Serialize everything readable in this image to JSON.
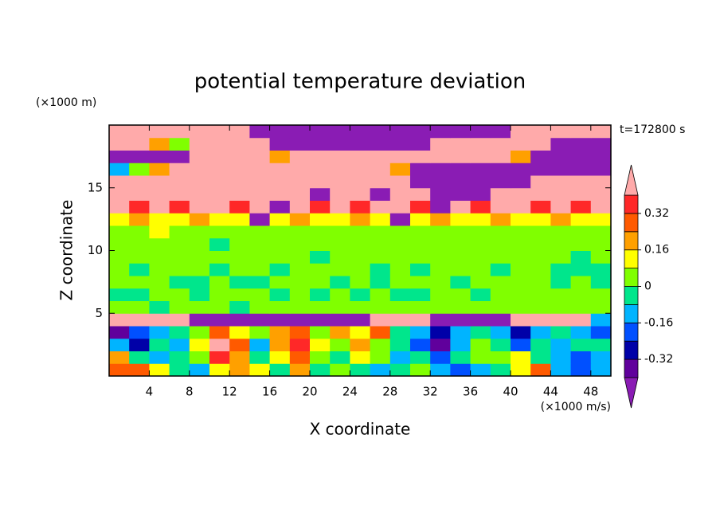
{
  "chart_data": {
    "type": "contour",
    "title": "potential temperature deviation",
    "xlabel": "X coordinate",
    "ylabel": "Z coordinate",
    "xunit": "(×1000 m/s)",
    "yunit": "(×1000 m)",
    "annotation": "t=172800 s",
    "xlim": [
      0,
      50
    ],
    "ylim": [
      0,
      20
    ],
    "xticks": [
      4,
      8,
      12,
      16,
      20,
      24,
      28,
      32,
      36,
      40,
      44,
      48
    ],
    "yticks": [
      5,
      10,
      15
    ],
    "x": [
      1,
      3,
      5,
      7,
      9,
      11,
      13,
      15,
      17,
      19,
      21,
      23,
      25,
      27,
      29,
      31,
      33,
      35,
      37,
      39,
      41,
      43,
      45,
      47,
      49
    ],
    "y": [
      0.5,
      1.5,
      2.5,
      3.5,
      4.5,
      5.5,
      6.5,
      7.5,
      8.5,
      9.5,
      10.5,
      11.5,
      12.5,
      13.5,
      14.5,
      15.5,
      16.5,
      17.5,
      18.5,
      19.5
    ],
    "levels": [
      -0.4,
      -0.32,
      -0.24,
      -0.16,
      -0.08,
      0,
      0.08,
      0.16,
      0.24,
      0.32,
      0.4
    ],
    "colors": [
      "#60009c",
      "#0000a8",
      "#0050ff",
      "#00b4ff",
      "#00e68c",
      "#80ff00",
      "#ffff00",
      "#ffa000",
      "#ff5a00",
      "#ff2828"
    ],
    "under_color": "#8a1cb4",
    "over_color": "#ffaaaa",
    "cbar_ticks": [
      -0.32,
      -0.16,
      0,
      0.16,
      0.32
    ],
    "z": [
      [
        0.28,
        0.28,
        0.12,
        -0.04,
        -0.12,
        0.12,
        0.2,
        0.12,
        -0.04,
        0.2,
        -0.04,
        0.04,
        -0.04,
        -0.12,
        -0.04,
        0.04,
        -0.12,
        -0.2,
        -0.12,
        -0.04,
        0.12,
        0.28,
        -0.12,
        -0.2,
        -0.12
      ],
      [
        0.2,
        -0.04,
        -0.12,
        -0.04,
        0.04,
        0.36,
        0.2,
        -0.04,
        0.12,
        0.28,
        0.04,
        -0.04,
        0.12,
        0.04,
        -0.12,
        -0.04,
        -0.2,
        -0.04,
        0.04,
        0.04,
        0.12,
        -0.04,
        -0.12,
        -0.2,
        -0.12
      ],
      [
        -0.12,
        -0.28,
        -0.04,
        -0.12,
        0.12,
        0.45,
        0.28,
        -0.12,
        0.2,
        0.36,
        0.12,
        0.04,
        0.2,
        0.04,
        -0.04,
        -0.2,
        -0.36,
        -0.12,
        0.04,
        -0.04,
        -0.2,
        -0.04,
        -0.12,
        -0.04,
        -0.04
      ],
      [
        -0.36,
        -0.2,
        -0.12,
        -0.04,
        0.04,
        0.28,
        0.12,
        0.04,
        0.2,
        0.28,
        0.04,
        0.2,
        0.12,
        0.28,
        -0.04,
        -0.12,
        -0.28,
        -0.12,
        -0.04,
        -0.12,
        -0.28,
        -0.12,
        -0.04,
        -0.12,
        -0.2
      ],
      [
        0.45,
        0.45,
        0.45,
        0.45,
        -0.45,
        -0.45,
        -0.45,
        -0.45,
        -0.45,
        -0.45,
        -0.45,
        -0.45,
        -0.45,
        0.45,
        0.45,
        0.45,
        -0.45,
        -0.45,
        -0.45,
        -0.45,
        0.45,
        0.45,
        0.45,
        0.45,
        -0.12
      ],
      [
        0.04,
        0.04,
        -0.04,
        0.04,
        0.04,
        0.04,
        -0.04,
        0.04,
        0.04,
        0.04,
        0.04,
        0.04,
        0.04,
        0.04,
        0.04,
        0.04,
        0.04,
        0.04,
        0.04,
        0.04,
        0.04,
        0.04,
        0.04,
        0.04,
        0.04
      ],
      [
        -0.04,
        -0.04,
        0.04,
        0.04,
        -0.04,
        0.04,
        0.04,
        0.04,
        -0.04,
        0.04,
        -0.04,
        0.04,
        -0.04,
        0.04,
        -0.04,
        -0.04,
        0.04,
        0.04,
        -0.04,
        0.04,
        0.04,
        0.04,
        0.04,
        0.04,
        0.04
      ],
      [
        0.04,
        0.04,
        0.04,
        -0.04,
        -0.04,
        0.04,
        -0.04,
        -0.04,
        0.04,
        0.04,
        0.04,
        -0.04,
        0.04,
        -0.04,
        0.04,
        0.04,
        0.04,
        -0.04,
        0.04,
        0.04,
        0.04,
        0.04,
        -0.04,
        0.04,
        -0.04
      ],
      [
        0.04,
        -0.04,
        0.04,
        0.04,
        0.04,
        -0.04,
        0.04,
        0.04,
        -0.04,
        0.04,
        0.04,
        0.04,
        0.04,
        -0.04,
        0.04,
        -0.04,
        0.04,
        0.04,
        0.04,
        -0.04,
        0.04,
        0.04,
        -0.04,
        -0.04,
        -0.04
      ],
      [
        0.04,
        0.04,
        0.04,
        0.04,
        0.04,
        0.04,
        0.04,
        0.04,
        0.04,
        0.04,
        -0.04,
        0.04,
        0.04,
        0.04,
        0.04,
        0.04,
        0.04,
        0.04,
        0.04,
        0.04,
        0.04,
        0.04,
        0.04,
        -0.04,
        0.04
      ],
      [
        0.04,
        0.04,
        0.04,
        0.04,
        0.04,
        -0.04,
        0.04,
        0.04,
        0.04,
        0.04,
        0.04,
        0.04,
        0.04,
        0.04,
        0.04,
        0.04,
        0.04,
        0.04,
        0.04,
        0.04,
        0.04,
        0.04,
        0.04,
        0.04,
        0.04
      ],
      [
        0.04,
        0.04,
        0.12,
        0.04,
        0.04,
        0.04,
        0.04,
        0.04,
        0.04,
        0.04,
        0.04,
        0.04,
        0.04,
        0.04,
        0.04,
        0.04,
        0.04,
        0.04,
        0.04,
        0.04,
        0.04,
        0.04,
        0.04,
        0.04,
        0.04
      ],
      [
        0.12,
        0.2,
        0.12,
        0.12,
        0.2,
        0.12,
        0.12,
        -0.45,
        0.12,
        0.2,
        0.12,
        0.12,
        0.2,
        0.12,
        -0.45,
        0.12,
        0.2,
        0.12,
        0.12,
        0.2,
        0.12,
        0.12,
        0.2,
        0.12,
        0.12
      ],
      [
        0.45,
        0.36,
        0.45,
        0.36,
        0.45,
        0.45,
        0.36,
        0.45,
        -0.45,
        0.45,
        0.36,
        0.45,
        0.36,
        0.45,
        0.45,
        0.36,
        -0.45,
        0.45,
        0.36,
        0.45,
        0.45,
        0.36,
        0.45,
        0.36,
        0.45
      ],
      [
        0.45,
        0.45,
        0.45,
        0.45,
        0.45,
        0.45,
        0.45,
        0.45,
        0.45,
        0.45,
        -0.45,
        0.45,
        0.45,
        -0.45,
        0.45,
        0.45,
        -0.45,
        -0.45,
        -0.45,
        0.45,
        0.45,
        0.45,
        0.45,
        0.45,
        0.45
      ],
      [
        0.45,
        0.45,
        0.45,
        0.45,
        0.45,
        0.45,
        0.45,
        0.45,
        0.45,
        0.45,
        0.45,
        0.45,
        0.45,
        0.45,
        0.45,
        -0.45,
        -0.45,
        -0.45,
        -0.45,
        -0.45,
        -0.45,
        0.45,
        0.45,
        0.45,
        0.45
      ],
      [
        -0.12,
        0.04,
        0.2,
        0.45,
        0.45,
        0.45,
        0.45,
        0.45,
        0.45,
        0.45,
        0.45,
        0.45,
        0.45,
        0.45,
        0.2,
        -0.45,
        -0.45,
        -0.45,
        -0.45,
        -0.45,
        -0.45,
        -0.45,
        -0.45,
        -0.45,
        -0.45
      ],
      [
        -0.45,
        -0.45,
        -0.45,
        -0.45,
        0.45,
        0.45,
        0.45,
        0.45,
        0.2,
        0.45,
        0.45,
        0.45,
        0.45,
        0.45,
        0.45,
        0.45,
        0.45,
        0.45,
        0.45,
        0.45,
        0.2,
        -0.45,
        -0.45,
        -0.45,
        -0.45
      ],
      [
        0.45,
        0.45,
        0.2,
        0.04,
        0.45,
        0.45,
        0.45,
        0.45,
        -0.45,
        -0.45,
        -0.45,
        -0.45,
        -0.45,
        -0.45,
        -0.45,
        -0.45,
        0.45,
        0.45,
        0.45,
        0.45,
        0.45,
        0.45,
        -0.45,
        -0.45,
        -0.45
      ],
      [
        0.45,
        0.45,
        0.45,
        0.45,
        0.45,
        0.45,
        0.45,
        -0.45,
        -0.45,
        -0.45,
        -0.45,
        -0.45,
        -0.45,
        -0.45,
        -0.45,
        -0.45,
        -0.45,
        -0.45,
        -0.45,
        -0.45,
        0.45,
        0.45,
        0.45,
        0.45,
        0.45
      ]
    ]
  }
}
